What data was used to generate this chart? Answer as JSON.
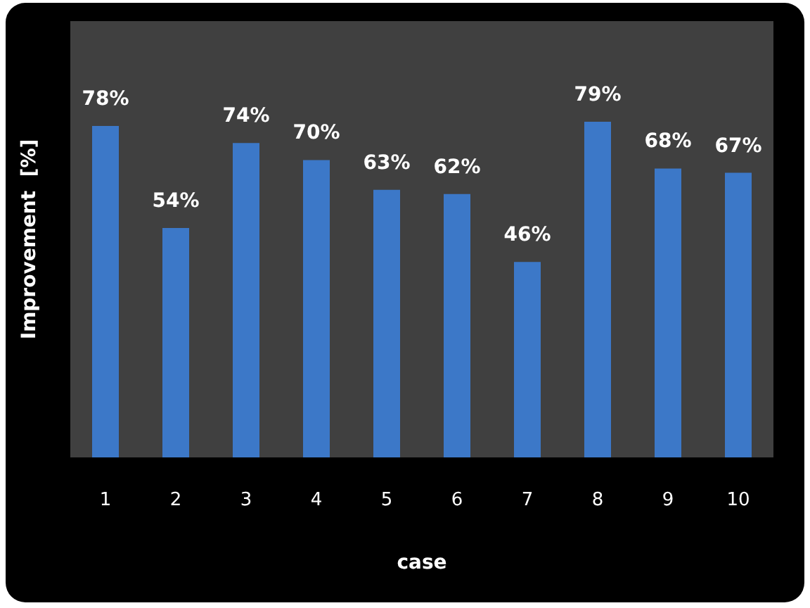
{
  "chart_data": {
    "type": "bar",
    "xlabel": "case",
    "ylabel": "Improvement  [%]",
    "categories": [
      "1",
      "2",
      "3",
      "4",
      "5",
      "6",
      "7",
      "8",
      "9",
      "10"
    ],
    "values": [
      78,
      54,
      74,
      70,
      63,
      62,
      46,
      79,
      68,
      67
    ],
    "value_labels": [
      "78%",
      "54%",
      "74%",
      "70%",
      "63%",
      "62%",
      "46%",
      "79%",
      "68%",
      "67%"
    ],
    "color": "#3c78c8"
  }
}
